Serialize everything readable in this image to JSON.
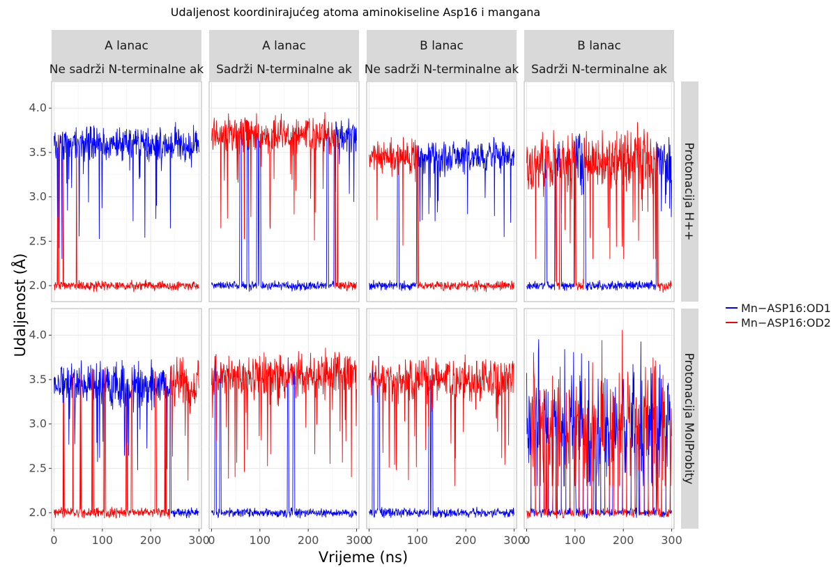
{
  "chart_data": {
    "type": "line",
    "title": "Udaljenost koordinirajućeg atoma aminokiseline Asp16 i mangana",
    "xlabel": "Vrijeme (ns)",
    "ylabel": "Udaljenost (Å)",
    "xlim": [
      -5,
      305
    ],
    "ylim": [
      1.82,
      4.3
    ],
    "x_ticks": [
      0,
      100,
      200,
      300
    ],
    "y_ticks": [
      2.0,
      2.5,
      3.0,
      3.5,
      4.0
    ],
    "x_tick_labels": [
      "0",
      "100",
      "200",
      "300"
    ],
    "y_tick_labels": [
      "2.0",
      "2.5",
      "3.0",
      "3.5",
      "4.0"
    ],
    "grid": true,
    "legend_position": "right",
    "legend": [
      {
        "name": "Mn−ASP16:OD1",
        "color": "#0000ff"
      },
      {
        "name": "Mn−ASP16:OD2",
        "color": "#ff0000"
      }
    ],
    "columns": [
      {
        "line1": "A lanac",
        "line2": "Ne sadrži N-terminalne ak"
      },
      {
        "line1": "A lanac",
        "line2": "Sadrži N-terminalne ak"
      },
      {
        "line1": "B lanac",
        "line2": "Ne sadrži N-terminalne ak"
      },
      {
        "line1": "B lanac",
        "line2": "Sadrži N-terminalne ak"
      }
    ],
    "rows": [
      {
        "label": "Protonacija H++"
      },
      {
        "label": "Protonacija MolProbity"
      }
    ],
    "series_notes": "Each panel: one atom coordinated near 2.0 Å, the other fluctuating 3.2–4.1 Å; roles swap at the listed times (ns).",
    "panels": [
      {
        "row": 0,
        "col": 0,
        "segments": [
          [
            0,
            305,
            "OD1"
          ]
        ],
        "mean_far": 3.6,
        "spread": 0.17,
        "switches": [
          8,
          18,
          24,
          45,
          57
        ]
      },
      {
        "row": 0,
        "col": 1,
        "segments": [
          [
            0,
            255,
            "OD2"
          ],
          [
            255,
            305,
            "OD1"
          ]
        ],
        "mean_far": 3.7,
        "spread": 0.18,
        "switches": [
          60,
          75,
          95,
          100,
          240,
          255,
          262
        ]
      },
      {
        "row": 0,
        "col": 2,
        "segments": [
          [
            0,
            100,
            "OD2"
          ],
          [
            100,
            305,
            "OD1"
          ]
        ],
        "mean_far": 3.45,
        "spread": 0.16,
        "switches": [
          60,
          100
        ]
      },
      {
        "row": 0,
        "col": 3,
        "segments": [
          [
            0,
            60,
            "OD2"
          ],
          [
            60,
            70,
            "OD1"
          ],
          [
            70,
            100,
            "OD2"
          ],
          [
            100,
            120,
            "OD1"
          ],
          [
            120,
            270,
            "OD2"
          ],
          [
            270,
            305,
            "OD1"
          ]
        ],
        "mean_far": 3.4,
        "spread": 0.28,
        "switches": [
          40,
          60,
          70,
          100,
          120,
          270
        ]
      },
      {
        "row": 1,
        "col": 0,
        "segments": [
          [
            0,
            240,
            "OD1"
          ],
          [
            240,
            305,
            "OD2"
          ]
        ],
        "mean_far": 3.45,
        "spread": 0.22,
        "switches": [
          20,
          38,
          55,
          80,
          105,
          150,
          160,
          210,
          230,
          240
        ]
      },
      {
        "row": 1,
        "col": 1,
        "segments": [
          [
            0,
            305,
            "OD2"
          ]
        ],
        "mean_far": 3.55,
        "spread": 0.2,
        "switches": [
          8,
          18,
          158,
          170
        ]
      },
      {
        "row": 1,
        "col": 2,
        "segments": [
          [
            0,
            305,
            "OD2"
          ]
        ],
        "mean_far": 3.5,
        "spread": 0.2,
        "switches": [
          8,
          20,
          125,
          130
        ]
      },
      {
        "row": 1,
        "col": 3,
        "segments": [
          [
            0,
            305,
            "MIX"
          ]
        ],
        "mean_far": 3.0,
        "spread": 0.65,
        "switches": [
          40,
          60,
          100,
          140,
          180,
          230,
          270
        ]
      }
    ]
  }
}
